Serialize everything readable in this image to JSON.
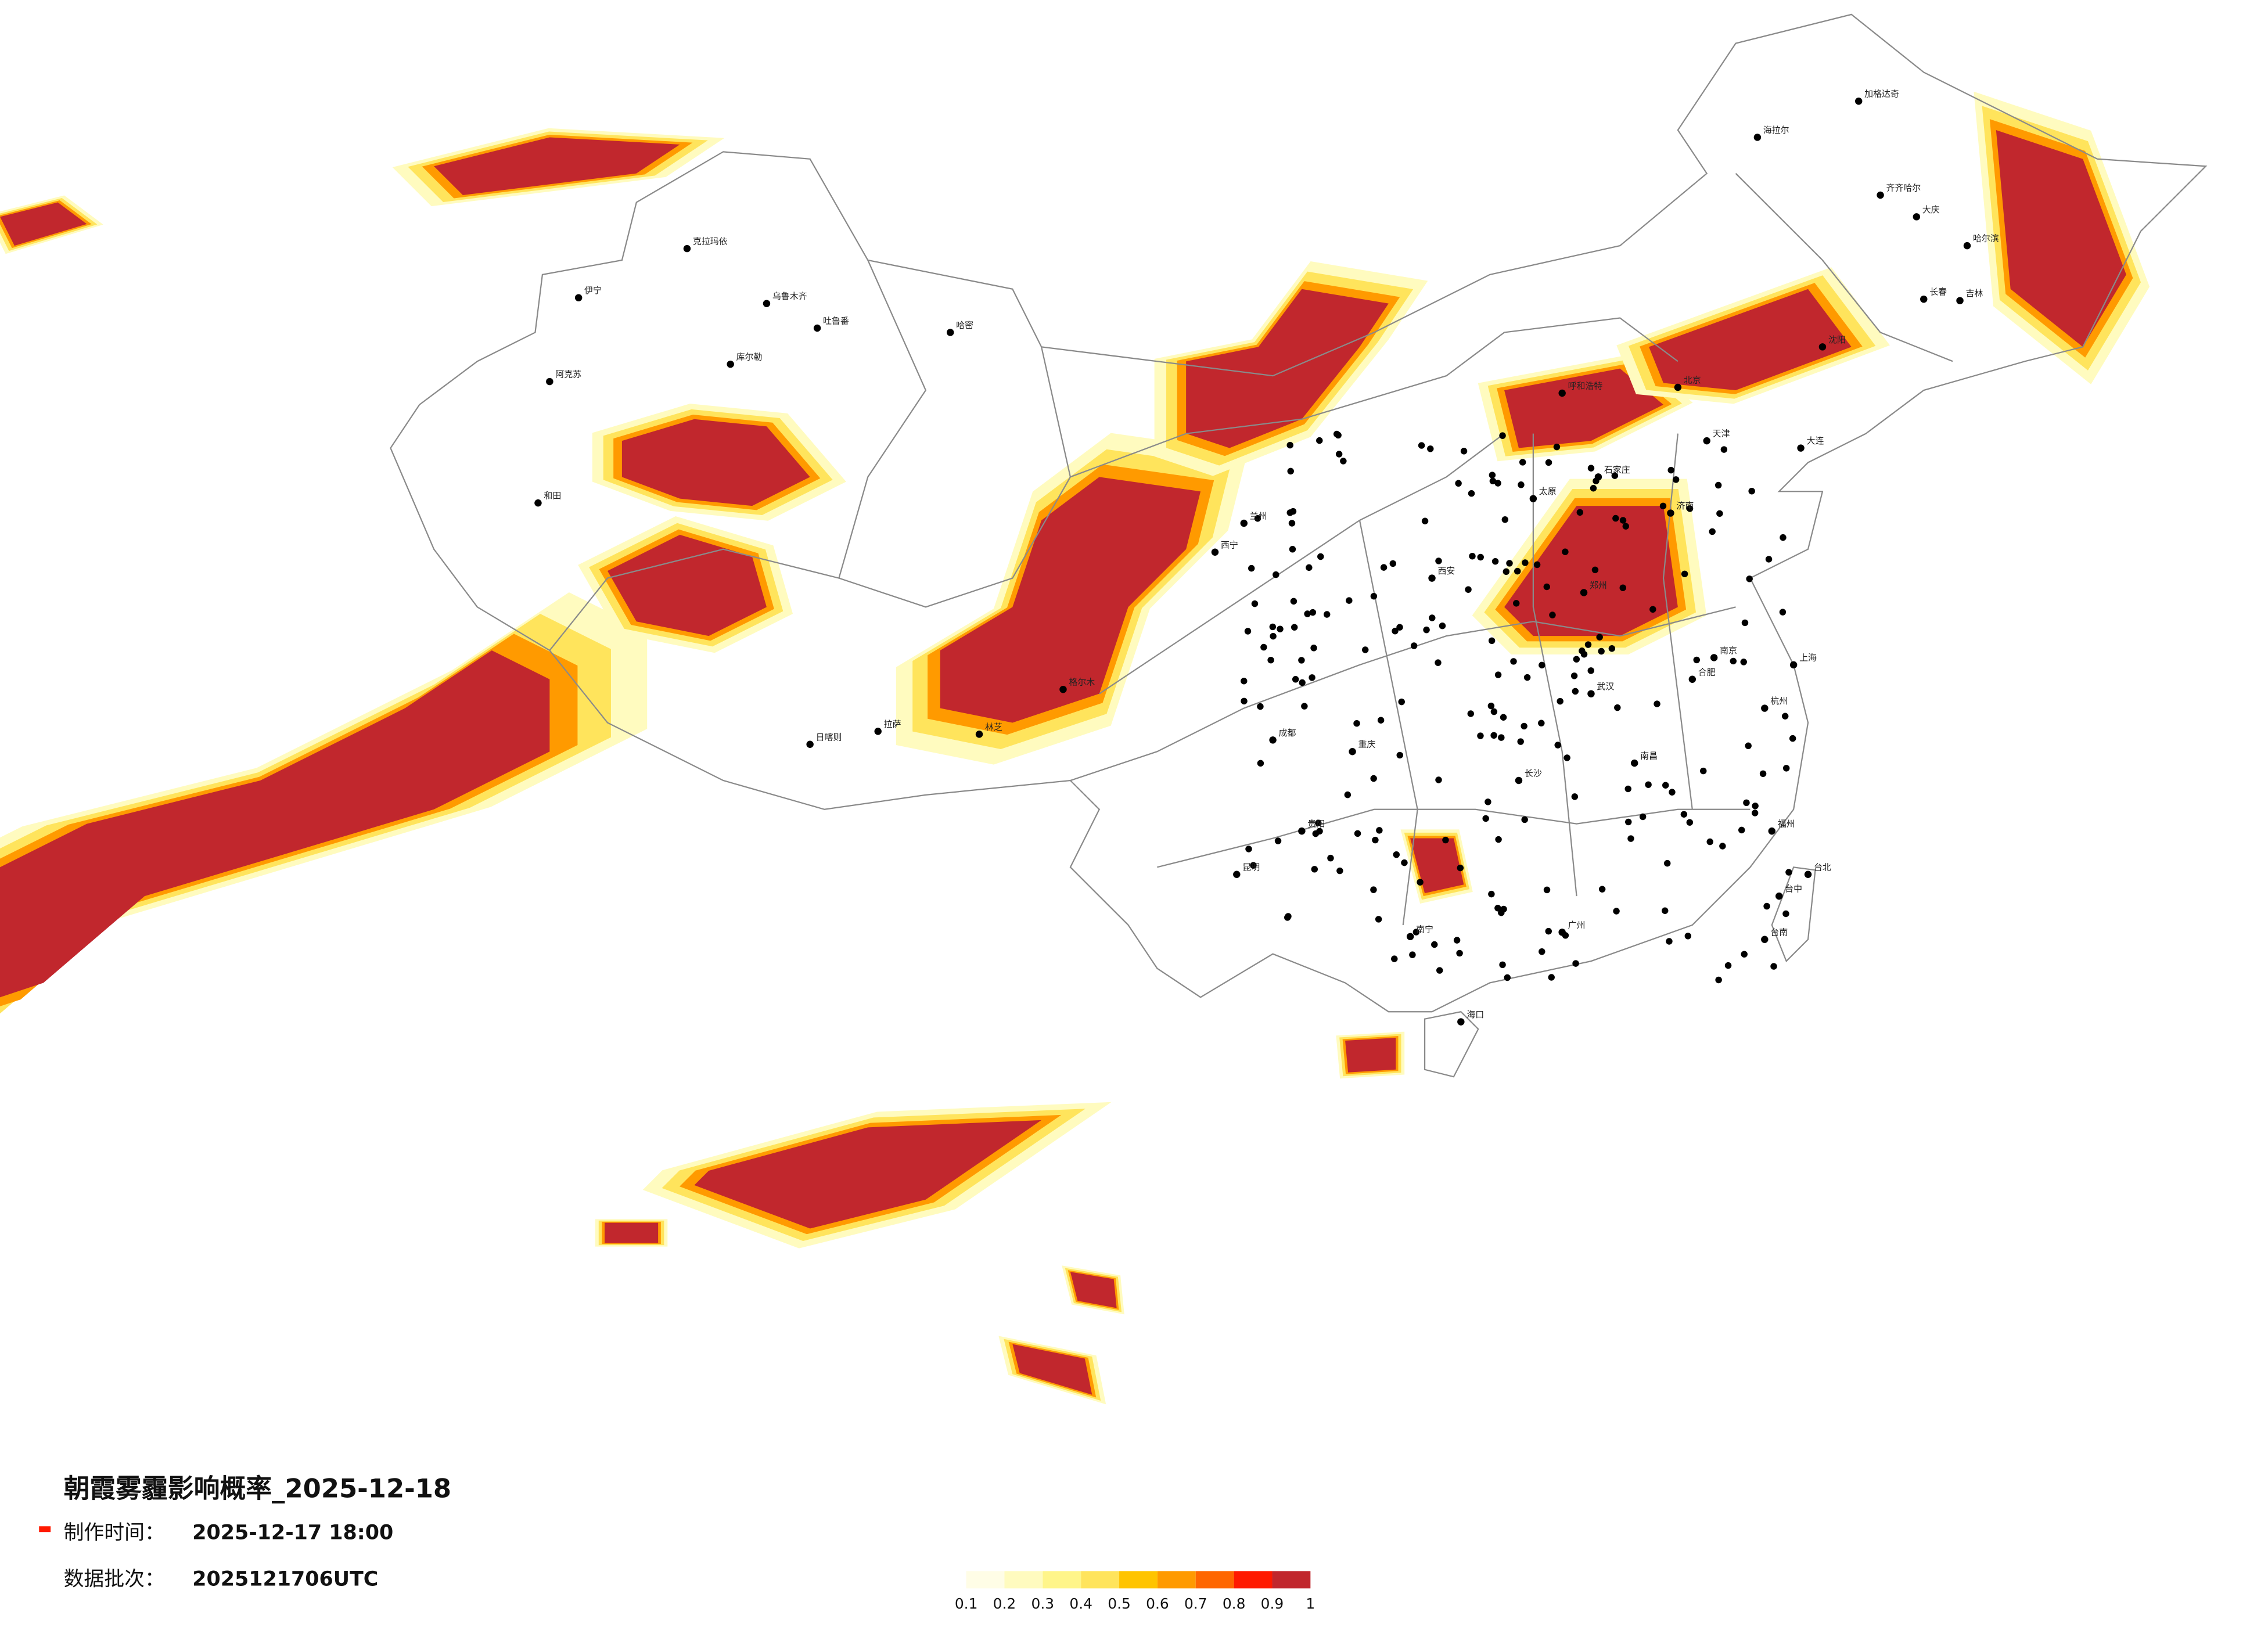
{
  "map": {
    "title": "朝霞雾霾影响概率_2025-12-18",
    "produced_label": "制作时间：",
    "produced": "2025-12-17 18:00",
    "batch_label": "数据批次：",
    "batch": "2025121706UTC",
    "legend": {
      "colors": [
        "#fffde6",
        "#fffbbf",
        "#fff58a",
        "#ffe45c",
        "#ffc400",
        "#ff9a00",
        "#ff6600",
        "#ff1a00",
        "#c1272d"
      ],
      "ticks": [
        0.1,
        0.2,
        0.3,
        0.4,
        0.5,
        0.6,
        0.7,
        0.8,
        0.9,
        1
      ]
    },
    "cities": [
      "克拉玛依",
      "乌鲁木齐",
      "吐鲁番",
      "哈密",
      "伊宁",
      "库尔勒",
      "阿克苏",
      "和田",
      "格尔木",
      "日喀则",
      "拉萨",
      "林芝",
      "西宁",
      "兰州",
      "呼和浩特",
      "北京",
      "天津",
      "石家庄",
      "太原",
      "济南",
      "郑州",
      "西安",
      "成都",
      "重庆",
      "贵阳",
      "昆明",
      "南宁",
      "广州",
      "长沙",
      "武汉",
      "南昌",
      "合肥",
      "南京",
      "上海",
      "杭州",
      "福州",
      "台北",
      "台中",
      "台南",
      "海口",
      "沈阳",
      "长春",
      "哈尔滨",
      "齐齐哈尔",
      "海拉尔",
      "加格达奇",
      "大庆",
      "吉林",
      "大连"
    ]
  }
}
